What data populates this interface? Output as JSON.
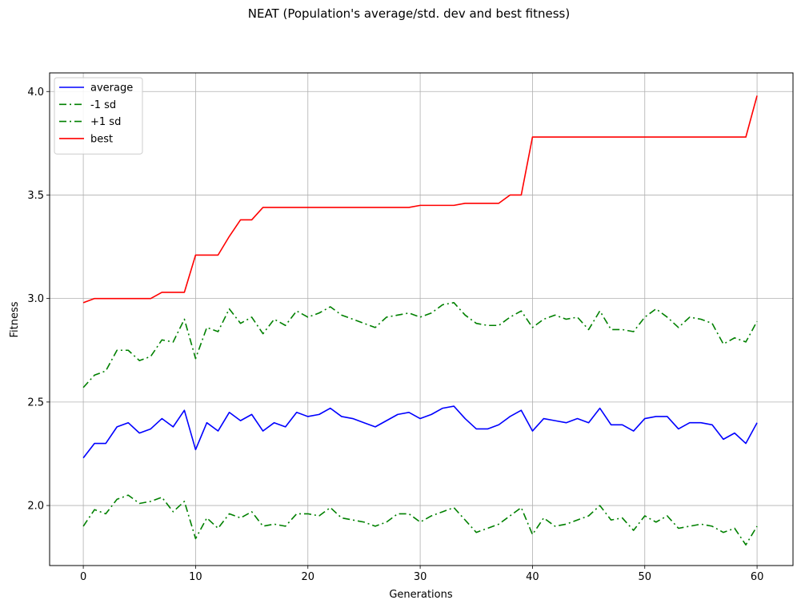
{
  "chart_data": {
    "type": "line",
    "title": "NEAT (Population's average/std. dev and best fitness)",
    "xlabel": "Generations",
    "ylabel": "Fitness",
    "xlim": [
      -3,
      63.2
    ],
    "ylim": [
      1.71,
      4.09
    ],
    "xticks": [
      0,
      10,
      20,
      30,
      40,
      50,
      60
    ],
    "yticks": [
      2.0,
      2.5,
      3.0,
      3.5,
      4.0
    ],
    "grid": true,
    "legend_position": "top-left",
    "x": [
      0,
      1,
      2,
      3,
      4,
      5,
      6,
      7,
      8,
      9,
      10,
      11,
      12,
      13,
      14,
      15,
      16,
      17,
      18,
      19,
      20,
      21,
      22,
      23,
      24,
      25,
      26,
      27,
      28,
      29,
      30,
      31,
      32,
      33,
      34,
      35,
      36,
      37,
      38,
      39,
      40,
      41,
      42,
      43,
      44,
      45,
      46,
      47,
      48,
      49,
      50,
      51,
      52,
      53,
      54,
      55,
      56,
      57,
      58,
      59,
      60
    ],
    "series": [
      {
        "name": "average",
        "color": "#0000ff",
        "style": "solid",
        "values": [
          2.23,
          2.3,
          2.3,
          2.38,
          2.4,
          2.35,
          2.37,
          2.42,
          2.38,
          2.46,
          2.27,
          2.4,
          2.36,
          2.45,
          2.41,
          2.44,
          2.36,
          2.4,
          2.38,
          2.45,
          2.43,
          2.44,
          2.47,
          2.43,
          2.42,
          2.4,
          2.38,
          2.41,
          2.44,
          2.45,
          2.42,
          2.44,
          2.47,
          2.48,
          2.42,
          2.37,
          2.37,
          2.39,
          2.43,
          2.46,
          2.36,
          2.42,
          2.41,
          2.4,
          2.42,
          2.4,
          2.47,
          2.39,
          2.39,
          2.36,
          2.42,
          2.43,
          2.43,
          2.37,
          2.4,
          2.4,
          2.39,
          2.32,
          2.35,
          2.3,
          2.4
        ]
      },
      {
        "name": "-1 sd",
        "color": "#008000",
        "style": "dashdot",
        "values": [
          1.9,
          1.98,
          1.96,
          2.03,
          2.05,
          2.01,
          2.02,
          2.04,
          1.97,
          2.02,
          1.84,
          1.94,
          1.89,
          1.96,
          1.94,
          1.97,
          1.9,
          1.91,
          1.9,
          1.96,
          1.96,
          1.95,
          1.99,
          1.94,
          1.93,
          1.92,
          1.9,
          1.92,
          1.96,
          1.96,
          1.92,
          1.95,
          1.97,
          1.99,
          1.93,
          1.87,
          1.89,
          1.91,
          1.95,
          1.99,
          1.86,
          1.94,
          1.9,
          1.91,
          1.93,
          1.95,
          2.0,
          1.93,
          1.94,
          1.88,
          1.95,
          1.92,
          1.95,
          1.89,
          1.9,
          1.91,
          1.9,
          1.87,
          1.89,
          1.81,
          1.9
        ]
      },
      {
        "name": "+1 sd",
        "color": "#008000",
        "style": "dashdot",
        "values": [
          2.57,
          2.63,
          2.65,
          2.75,
          2.75,
          2.7,
          2.72,
          2.8,
          2.79,
          2.9,
          2.71,
          2.86,
          2.84,
          2.95,
          2.88,
          2.91,
          2.83,
          2.9,
          2.87,
          2.94,
          2.91,
          2.93,
          2.96,
          2.92,
          2.9,
          2.88,
          2.86,
          2.91,
          2.92,
          2.93,
          2.91,
          2.93,
          2.97,
          2.98,
          2.92,
          2.88,
          2.87,
          2.87,
          2.91,
          2.94,
          2.86,
          2.9,
          2.92,
          2.9,
          2.91,
          2.85,
          2.94,
          2.85,
          2.85,
          2.84,
          2.91,
          2.95,
          2.91,
          2.86,
          2.91,
          2.9,
          2.88,
          2.78,
          2.81,
          2.79,
          2.89
        ]
      },
      {
        "name": "best",
        "color": "#ff0000",
        "style": "solid",
        "values": [
          2.98,
          3.0,
          3.0,
          3.0,
          3.0,
          3.0,
          3.0,
          3.03,
          3.03,
          3.03,
          3.21,
          3.21,
          3.21,
          3.3,
          3.38,
          3.38,
          3.44,
          3.44,
          3.44,
          3.44,
          3.44,
          3.44,
          3.44,
          3.44,
          3.44,
          3.44,
          3.44,
          3.44,
          3.44,
          3.44,
          3.45,
          3.45,
          3.45,
          3.45,
          3.46,
          3.46,
          3.46,
          3.46,
          3.5,
          3.5,
          3.78,
          3.78,
          3.78,
          3.78,
          3.78,
          3.78,
          3.78,
          3.78,
          3.78,
          3.78,
          3.78,
          3.78,
          3.78,
          3.78,
          3.78,
          3.78,
          3.78,
          3.78,
          3.78,
          3.78,
          3.98
        ]
      }
    ]
  }
}
